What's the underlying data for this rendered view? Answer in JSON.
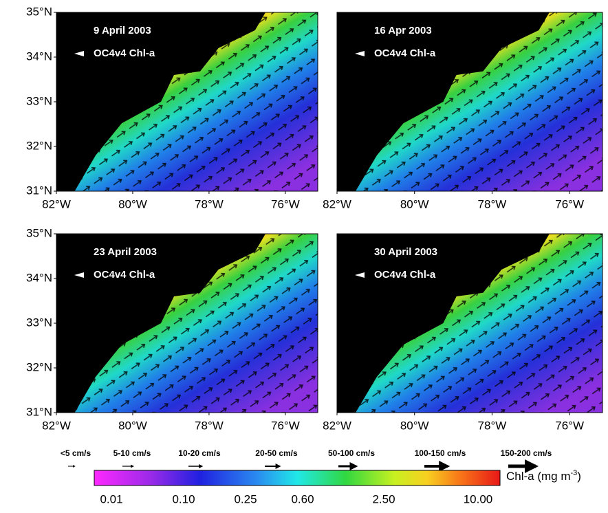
{
  "panels": [
    {
      "title": "9 April 2003",
      "product": "OC4v4 Chl-a"
    },
    {
      "title": "16 Apr 2003",
      "product": "OC4v4 Chl-a"
    },
    {
      "title": "23 April 2003",
      "product": "OC4v4 Chl-a"
    },
    {
      "title": "30 April 2003",
      "product": "OC4v4 Chl-a"
    }
  ],
  "axes": {
    "lat_labels": [
      "35°N",
      "34°N",
      "33°N",
      "32°N",
      "31°N"
    ],
    "lon_labels": [
      "82°W",
      "80°W",
      "78°W",
      "76°W"
    ]
  },
  "current_legend": [
    "<5 cm/s",
    "5-10 cm/s",
    "10-20 cm/s",
    "20-50 cm/s",
    "50-100 cm/s",
    "100-150 cm/s",
    "150-200 cm/s"
  ],
  "colorbar": {
    "label": "Chl-a (mg m",
    "label_sup": "-3",
    "label_end": ")",
    "tick_labels": [
      "0.01",
      "0.10",
      "0.25",
      "0.60",
      "2.50",
      "10.00"
    ]
  }
}
